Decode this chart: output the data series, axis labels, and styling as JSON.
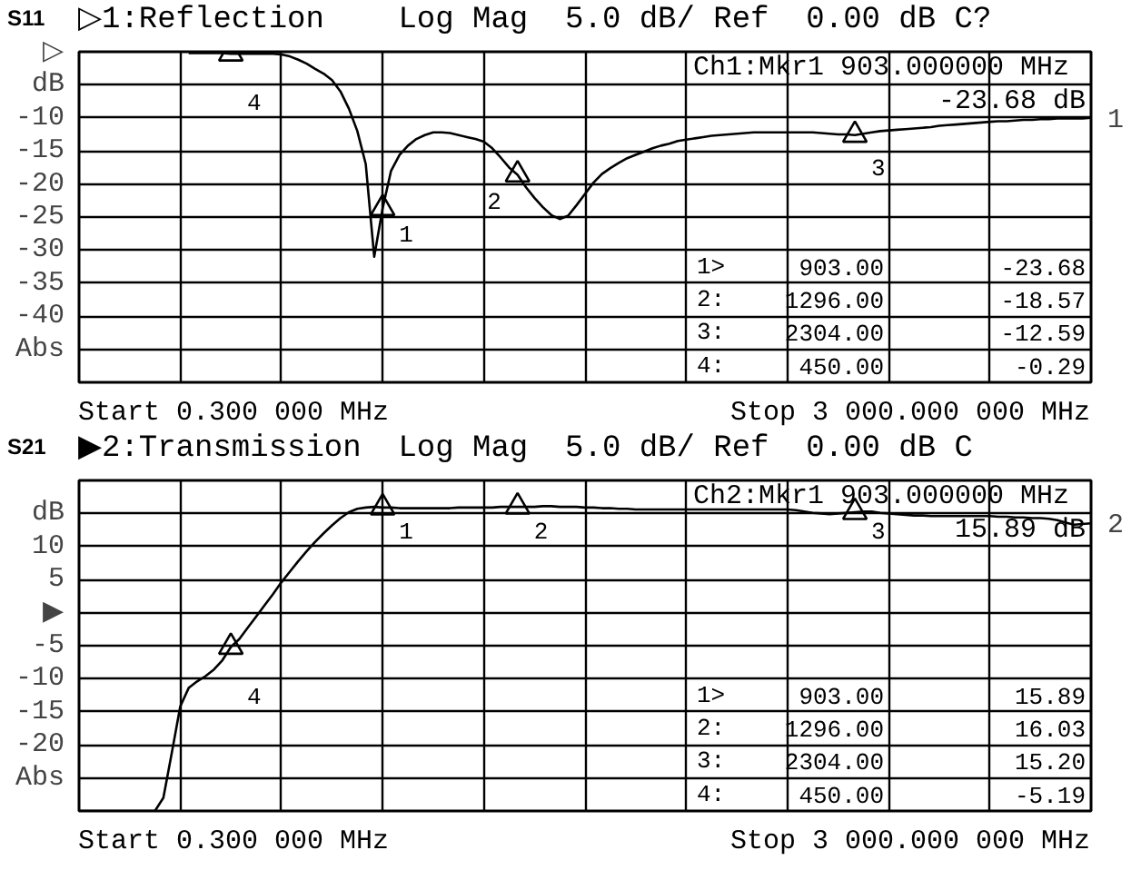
{
  "chart_data": [
    {
      "type": "line",
      "title": "S11",
      "subtitle": "▷1:Reflection    Log Mag  5.0 dB/ Ref  0.00 dB C?",
      "categories": [
        null,
        null,
        null,
        null,
        null,
        null,
        null,
        null,
        null,
        null,
        null,
        null,
        null,
        null,
        null,
        null,
        null,
        null,
        null,
        null,
        null,
        null,
        null,
        null,
        null,
        null,
        null,
        null,
        null,
        null,
        null,
        null,
        null,
        null,
        null,
        null,
        null,
        null,
        null,
        null,
        null,
        null,
        null,
        null,
        null,
        null,
        null,
        null,
        null,
        null,
        null,
        null,
        null,
        null,
        null,
        null,
        null,
        null,
        null,
        null,
        null,
        null,
        null,
        null,
        null,
        null,
        null,
        null,
        null,
        null,
        null,
        null,
        null,
        null,
        null,
        null,
        null,
        null,
        null,
        null,
        null,
        null,
        null,
        null,
        null,
        null,
        null,
        null,
        null,
        null,
        null,
        null,
        null,
        null,
        null,
        null,
        null,
        null,
        null,
        null,
        null,
        null,
        null,
        null,
        null,
        null,
        null,
        null,
        null,
        null,
        null,
        null,
        null,
        null,
        null,
        null,
        null,
        null,
        null,
        null,
        null
      ],
      "series": [
        {
          "color": "#000000",
          "values": [
            null,
            null,
            null,
            null,
            null,
            null,
            null,
            null,
            null,
            null,
            null,
            null,
            null,
            -0.2,
            -0.2,
            -0.2,
            -0.2,
            -0.2,
            -0.3,
            -0.3,
            -0.3,
            -0.3,
            -0.3,
            -0.3,
            -0.4,
            -0.7,
            -1.2,
            -1.8,
            -2.6,
            -3.3,
            -4.3,
            -6.0,
            -8.6,
            -12.0,
            -17.0,
            -31.0,
            -23.7,
            -18.0,
            -15.6,
            -14.2,
            -13.2,
            -12.6,
            -12.2,
            -12.2,
            -12.3,
            -12.6,
            -12.9,
            -13.2,
            -13.6,
            -14.6,
            -16.0,
            -17.5,
            -18.6,
            -20.5,
            -22.1,
            -23.5,
            -24.7,
            -25.3,
            -24.8,
            -23.2,
            -21.5,
            -19.8,
            -18.5,
            -17.6,
            -16.8,
            -16.1,
            -15.6,
            -15.1,
            -14.6,
            -14.2,
            -13.9,
            -13.5,
            -13.3,
            -13.1,
            -12.9,
            -12.7,
            -12.6,
            -12.5,
            -12.4,
            -12.3,
            -12.2,
            -12.2,
            -12.2,
            -12.2,
            -12.2,
            -12.2,
            -12.2,
            -12.2,
            -12.3,
            -12.4,
            -12.5,
            -12.5,
            -12.6,
            -12.4,
            -12.2,
            -12.0,
            -11.9,
            -11.8,
            -11.7,
            -11.6,
            -11.5,
            -11.4,
            -11.2,
            -11.1,
            -11.0,
            -10.9,
            -10.8,
            -10.7,
            -10.6,
            -10.5,
            -10.5,
            -10.4,
            -10.3,
            -10.3,
            -10.2,
            -10.2,
            -10.1,
            -10.1,
            -10.1,
            -10.1,
            -10.0
          ]
        },
        {
          "type": "scatter",
          "marker": "triangle",
          "color": "#000000",
          "values": [
            null,
            null,
            null,
            null,
            null,
            null,
            null,
            null,
            null,
            null,
            null,
            null,
            null,
            null,
            null,
            null,
            null,
            null,
            -0.29,
            null,
            null,
            null,
            null,
            null,
            null,
            null,
            null,
            null,
            null,
            null,
            null,
            null,
            null,
            null,
            null,
            null,
            -23.68,
            null,
            null,
            null,
            null,
            null,
            null,
            null,
            null,
            null,
            null,
            null,
            null,
            null,
            null,
            null,
            -18.57,
            null,
            null,
            null,
            null,
            null,
            null,
            null,
            null,
            null,
            null,
            null,
            null,
            null,
            null,
            null,
            null,
            null,
            null,
            null,
            null,
            null,
            null,
            null,
            null,
            null,
            null,
            null,
            null,
            null,
            null,
            null,
            null,
            null,
            null,
            null,
            null,
            null,
            null,
            null,
            -12.59,
            null,
            null,
            null,
            null,
            null,
            null,
            null,
            null,
            null,
            null,
            null,
            null,
            null,
            null,
            null,
            null,
            null,
            null,
            null,
            null,
            null,
            null,
            null,
            null,
            null,
            null,
            null,
            null
          ]
        }
      ],
      "ylim": [
        -50,
        0
      ],
      "yticks": [
        {
          "value": 0,
          "label": "▷"
        },
        {
          "value": -5,
          "label": "dB"
        },
        -10,
        -15,
        -20,
        -25,
        -30,
        -35,
        -40,
        {
          "value": -45,
          "label": "Abs"
        },
        {
          "value": -50,
          "label": null
        }
      ],
      "grid": true,
      "tick_labels": "y",
      "line_style": "solid",
      "annotations": [
        "Ch1:Mkr1  903.000000 MHz",
        "-23.68 dB",
        "1>",
        "903.00",
        "-23.68",
        "2:",
        "1296.00",
        "-18.57",
        "3:",
        "2304.00",
        "-12.59",
        "4:",
        "450.00",
        "-0.29",
        "4",
        "1",
        "2",
        "3",
        "1",
        "Start 0.300 000 MHz",
        "Stop 3 000.000 000 MHz"
      ]
    },
    {
      "type": "line",
      "title": "S21",
      "subtitle": "▶2:Transmission  Log Mag  5.0 dB/ Ref  0.00 dB C",
      "categories": [
        null,
        null,
        null,
        null,
        null,
        null,
        null,
        null,
        null,
        null,
        null,
        null,
        null,
        null,
        null,
        null,
        null,
        null,
        null,
        null,
        null,
        null,
        null,
        null,
        null,
        null,
        null,
        null,
        null,
        null,
        null,
        null,
        null,
        null,
        null,
        null,
        null,
        null,
        null,
        null,
        null,
        null,
        null,
        null,
        null,
        null,
        null,
        null,
        null,
        null,
        null,
        null,
        null,
        null,
        null,
        null,
        null,
        null,
        null,
        null,
        null,
        null,
        null,
        null,
        null,
        null,
        null,
        null,
        null,
        null,
        null,
        null,
        null,
        null,
        null,
        null,
        null,
        null,
        null,
        null,
        null,
        null,
        null,
        null,
        null,
        null,
        null,
        null,
        null,
        null,
        null,
        null,
        null,
        null,
        null,
        null,
        null,
        null,
        null,
        null,
        null,
        null,
        null,
        null,
        null,
        null,
        null,
        null,
        null,
        null,
        null,
        null,
        null,
        null,
        null,
        null,
        null,
        null,
        null,
        null,
        null
      ],
      "series": [
        {
          "color": "#000000",
          "values": [
            -30,
            -30,
            -30,
            -30,
            -30,
            -30,
            -30,
            -30,
            -30,
            -30,
            -28.0,
            -21.2,
            -14.2,
            -11.4,
            -10.4,
            -9.6,
            -8.6,
            -7.2,
            -5.2,
            -4.0,
            -2.3,
            -0.6,
            1.1,
            2.8,
            4.6,
            6.2,
            7.8,
            9.3,
            10.7,
            12.0,
            13.2,
            14.3,
            15.2,
            15.7,
            15.9,
            16.0,
            15.9,
            15.9,
            15.8,
            15.8,
            15.8,
            15.8,
            15.8,
            15.8,
            15.8,
            15.9,
            15.9,
            15.9,
            15.9,
            15.9,
            16.0,
            16.0,
            16.0,
            16.0,
            16.0,
            16.1,
            16.1,
            16.0,
            16.0,
            16.0,
            15.9,
            15.9,
            15.8,
            15.8,
            15.7,
            15.7,
            15.6,
            15.6,
            15.6,
            15.6,
            15.6,
            15.6,
            15.6,
            15.6,
            15.6,
            15.6,
            15.6,
            15.6,
            15.6,
            15.6,
            15.6,
            15.6,
            15.6,
            15.6,
            15.6,
            15.5,
            15.3,
            15.1,
            15.0,
            14.9,
            15.0,
            15.1,
            15.2,
            15.3,
            15.3,
            15.1,
            15.0,
            14.9,
            14.8,
            14.7,
            14.7,
            14.6,
            14.6,
            14.6,
            14.6,
            14.6,
            14.6,
            14.6,
            14.6,
            14.5,
            14.5,
            14.4,
            14.4,
            14.3,
            14.3,
            14.2,
            14.0,
            13.6,
            13.3,
            13.4,
            13.5
          ]
        },
        {
          "type": "scatter",
          "marker": "triangle",
          "color": "#000000",
          "values": [
            null,
            null,
            null,
            null,
            null,
            null,
            null,
            null,
            null,
            null,
            null,
            null,
            null,
            null,
            null,
            null,
            null,
            null,
            -5.19,
            null,
            null,
            null,
            null,
            null,
            null,
            null,
            null,
            null,
            null,
            null,
            null,
            null,
            null,
            null,
            null,
            null,
            15.89,
            null,
            null,
            null,
            null,
            null,
            null,
            null,
            null,
            null,
            null,
            null,
            null,
            null,
            null,
            null,
            16.03,
            null,
            null,
            null,
            null,
            null,
            null,
            null,
            null,
            null,
            null,
            null,
            null,
            null,
            null,
            null,
            null,
            null,
            null,
            null,
            null,
            null,
            null,
            null,
            null,
            null,
            null,
            null,
            null,
            null,
            null,
            null,
            null,
            null,
            null,
            null,
            null,
            null,
            null,
            null,
            15.2,
            null,
            null,
            null,
            null,
            null,
            null,
            null,
            null,
            null,
            null,
            null,
            null,
            null,
            null,
            null,
            null,
            null,
            null,
            null,
            null,
            null,
            null,
            null,
            null,
            null,
            null,
            null,
            null
          ]
        }
      ],
      "ylim": [
        -30,
        20
      ],
      "yticks": [
        {
          "value": 20,
          "label": null
        },
        {
          "value": 15,
          "label": "dB"
        },
        10,
        5,
        {
          "value": 0,
          "label": "▶"
        },
        -5,
        -10,
        -15,
        -20,
        {
          "value": -25,
          "label": "Abs"
        },
        {
          "value": -30,
          "label": null
        }
      ],
      "grid": true,
      "tick_labels": "y",
      "line_style": "solid",
      "annotations": [
        "Ch2:Mkr1  903.000000 MHz",
        "15.89 dB",
        "1>",
        "903.00",
        "15.89",
        "2:",
        "1296.00",
        "16.03",
        "3:",
        "2304.00",
        "15.20",
        "4:",
        "450.00",
        "-5.19",
        "4",
        "1",
        "2",
        "3",
        "2",
        "Start 0.300 000 MHz",
        "Stop 3 000.000 000 MHz"
      ]
    }
  ]
}
